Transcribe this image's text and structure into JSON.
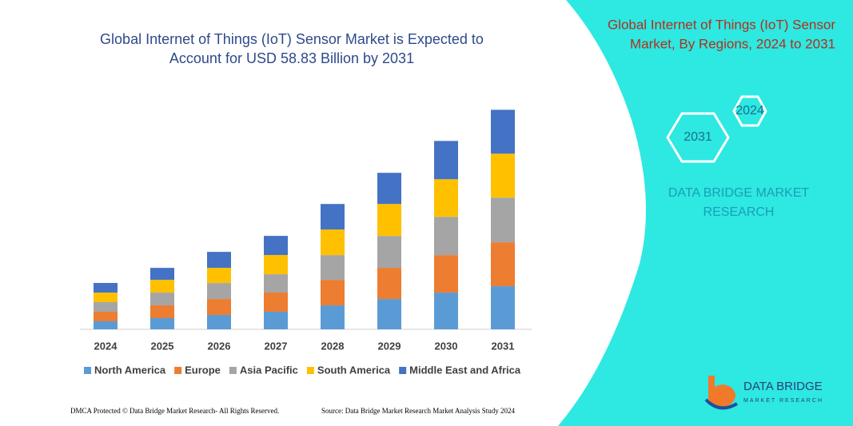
{
  "chart_data": {
    "type": "stacked-bar",
    "title": [
      "Global Internet of Things (IoT) Sensor Market is Expected to",
      "Account for USD 58.83 Billion by 2031"
    ],
    "categories": [
      "2024",
      "2025",
      "2026",
      "2027",
      "2028",
      "2029",
      "2030",
      "2031"
    ],
    "series": [
      {
        "name": "North America",
        "color": "#5b9bd5",
        "values": [
          2.14,
          3.0,
          3.85,
          4.71,
          6.42,
          8.13,
          9.84,
          11.56
        ]
      },
      {
        "name": "Europe",
        "color": "#ed7d31",
        "values": [
          2.57,
          3.42,
          4.28,
          5.14,
          6.85,
          8.35,
          10.06,
          11.77
        ]
      },
      {
        "name": "Asia Pacific",
        "color": "#a5a5a5",
        "values": [
          2.57,
          3.42,
          4.28,
          4.92,
          6.63,
          8.56,
          10.27,
          11.98
        ]
      },
      {
        "name": "South America",
        "color": "#ffc000",
        "values": [
          2.57,
          3.42,
          4.07,
          5.14,
          6.85,
          8.56,
          10.06,
          11.77
        ]
      },
      {
        "name": "Middle East and Africa",
        "color": "#4472c4",
        "values": [
          2.57,
          3.21,
          4.28,
          5.14,
          6.85,
          8.35,
          10.27,
          11.77
        ]
      }
    ],
    "ylim": [
      0,
      60
    ],
    "legend": "bottom"
  },
  "panel": {
    "title": [
      "Global Internet of Things (IoT) Sensor",
      "Market, By Regions, 2024 to 2031"
    ],
    "years": [
      "2024",
      "2031"
    ],
    "brand": [
      "DATA BRIDGE MARKET",
      "RESEARCH"
    ],
    "logo": [
      "DATA BRIDGE",
      "MARKET RESEARCH"
    ]
  },
  "footer": {
    "left": "DMCA Protected © Data Bridge Market Research- All Rights Reserved.",
    "right": "Source: Data Bridge Market Research  Market Analysis Study 2024"
  }
}
